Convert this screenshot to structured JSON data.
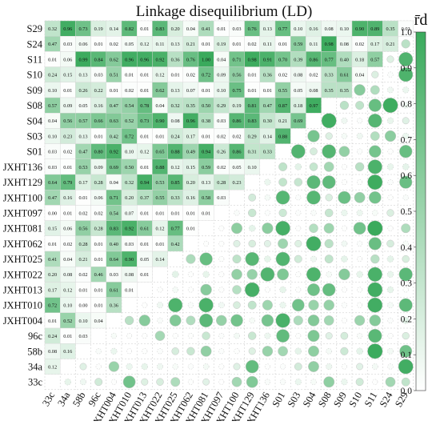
{
  "chart_data": {
    "type": "heatmap",
    "title": "Linkage disequilibrium (LD)",
    "colorbar_label": "r̄d",
    "colorbar_range": [
      0.0,
      1.0
    ],
    "colorbar_ticks": [
      "0.0",
      "0.1",
      "0.2",
      "0.3",
      "0.4",
      "0.5",
      "0.6",
      "0.7",
      "0.8",
      "0.9",
      "1.0"
    ],
    "color_low": "#ffffff",
    "color_high": "#3aaa5c",
    "grid": true,
    "upper_triangle": "numeric values",
    "lower_triangle": "circles sized and shaded by value",
    "row_labels": [
      "S29",
      "S24",
      "S11",
      "S10",
      "S09",
      "S08",
      "S04",
      "S03",
      "S01",
      "JXHT136",
      "JXHT129",
      "JXHT100",
      "JXHT097",
      "JXHT081",
      "JXHT062",
      "JXHT025",
      "JXHT022",
      "JXHT013",
      "JXHT010",
      "JXHT004",
      "96c",
      "58b",
      "34a",
      "33c"
    ],
    "col_labels": [
      "33c",
      "34a",
      "58b",
      "96c",
      "JXHT004",
      "JXHT010",
      "JXHT013",
      "JXHT022",
      "JXHT025",
      "JXHT062",
      "JXHT081",
      "JXHT097",
      "JXHT100",
      "JXHT129",
      "JXHT136",
      "S01",
      "S03",
      "S04",
      "S08",
      "S09",
      "S10",
      "S11",
      "S24",
      "S29"
    ],
    "values": [
      [
        "0.32",
        "0.96",
        "0.73",
        "0.19",
        "0.14",
        "0.82",
        "0.01",
        "0.83",
        "0.20",
        "0.04",
        "0.41",
        "0.01",
        "0.03",
        "0.76",
        "0.13",
        "0.77",
        "0.10",
        "0.16",
        "0.08",
        "0.10",
        "0.90",
        "0.89",
        "0.35",
        "0.02"
      ],
      [
        "0.47",
        "0.03",
        "0.06",
        "0.01",
        "0.02",
        "0.05",
        "0.12",
        "0.11",
        "0.13",
        "0.21",
        "0.01",
        "0.19",
        "0.01",
        "0.02",
        "0.11",
        "0.01",
        "0.59",
        "0.11",
        "0.98",
        "0.08",
        "0.02",
        "0.17",
        "0.21"
      ],
      [
        "0.01",
        "0.06",
        "0.99",
        "0.84",
        "0.62",
        "0.96",
        "0.96",
        "0.92",
        "0.36",
        "0.76",
        "1.00",
        "0.04",
        "0.71",
        "0.98",
        "0.91",
        "0.70",
        "0.39",
        "0.86",
        "0.77",
        "0.40",
        "0.18",
        "0.57"
      ],
      [
        "0.24",
        "0.15",
        "0.13",
        "0.03",
        "0.51",
        "0.01",
        "0.01",
        "0.12",
        "0.01",
        "0.02",
        "0.72",
        "0.09",
        "0.56",
        "0.01",
        "0.36",
        "0.02",
        "0.08",
        "0.02",
        "0.33",
        "0.61",
        "0.04"
      ],
      [
        "0.10",
        "0.01",
        "0.26",
        "0.22",
        "0.01",
        "0.02",
        "0.01",
        "0.62",
        "0.13",
        "0.07",
        "0.01",
        "0.10",
        "0.75",
        "0.01",
        "0.01",
        "0.55",
        "0.05",
        "0.08",
        "0.35",
        "0.35"
      ],
      [
        "0.57",
        "0.09",
        "0.05",
        "0.16",
        "0.47",
        "0.54",
        "0.78",
        "0.04",
        "0.32",
        "0.35",
        "0.50",
        "0.29",
        "0.19",
        "0.81",
        "0.47",
        "0.87",
        "0.18",
        "0.97"
      ],
      [
        "0.04",
        "0.56",
        "0.57",
        "0.66",
        "0.63",
        "0.52",
        "0.73",
        "0.90",
        "0.08",
        "0.96",
        "0.38",
        "0.03",
        "0.86",
        "0.83",
        "0.30",
        "0.21",
        "0.69"
      ],
      [
        "0.10",
        "0.23",
        "0.13",
        "0.01",
        "0.42",
        "0.72",
        "0.01",
        "0.01",
        "0.24",
        "0.17",
        "0.01",
        "0.02",
        "0.02",
        "0.29",
        "0.14",
        "0.88"
      ],
      [
        "0.03",
        "0.02",
        "0.47",
        "0.80",
        "0.92",
        "0.10",
        "0.12",
        "0.65",
        "0.88",
        "0.49",
        "0.94",
        "0.26",
        "0.86",
        "0.31",
        "0.33"
      ],
      [
        "0.03",
        "0.01",
        "0.53",
        "0.09",
        "0.69",
        "0.50",
        "0.01",
        "0.88",
        "0.12",
        "0.15",
        "0.59",
        "0.02",
        "0.05",
        "0.10"
      ],
      [
        "0.64",
        "0.79",
        "0.17",
        "0.28",
        "0.04",
        "0.32",
        "0.94",
        "0.53",
        "0.85",
        "0.20",
        "0.13",
        "0.28",
        "0.23"
      ],
      [
        "0.47",
        "0.16",
        "0.01",
        "0.06",
        "0.71",
        "0.20",
        "0.37",
        "0.55",
        "0.33",
        "0.16",
        "0.58",
        "0.03"
      ],
      [
        "0.00",
        "0.01",
        "0.02",
        "0.02",
        "0.54",
        "0.07",
        "0.01",
        "0.01",
        "0.01",
        "0.01",
        "0.01"
      ],
      [
        "0.15",
        "0.06",
        "0.56",
        "0.28",
        "0.83",
        "0.92",
        "0.61",
        "0.12",
        "0.77",
        "0.01"
      ],
      [
        "0.01",
        "0.02",
        "0.28",
        "0.01",
        "0.40",
        "0.03",
        "0.01",
        "0.01",
        "0.42"
      ],
      [
        "0.41",
        "0.04",
        "0.21",
        "0.01",
        "0.64",
        "0.90",
        "0.05",
        "0.14"
      ],
      [
        "0.20",
        "0.08",
        "0.02",
        "0.46",
        "0.03",
        "0.08",
        "0.01"
      ],
      [
        "0.17",
        "0.12",
        "0.01",
        "0.01",
        "0.61",
        "0.01"
      ],
      [
        "0.72",
        "0.10",
        "0.00",
        "0.01",
        "0.36"
      ],
      [
        "0.01",
        "0.52",
        "0.10",
        "0.04"
      ],
      [
        "0.24",
        "0.01",
        "0.03"
      ],
      [
        "0.08",
        "0.16"
      ],
      [
        "0.12"
      ],
      []
    ]
  }
}
